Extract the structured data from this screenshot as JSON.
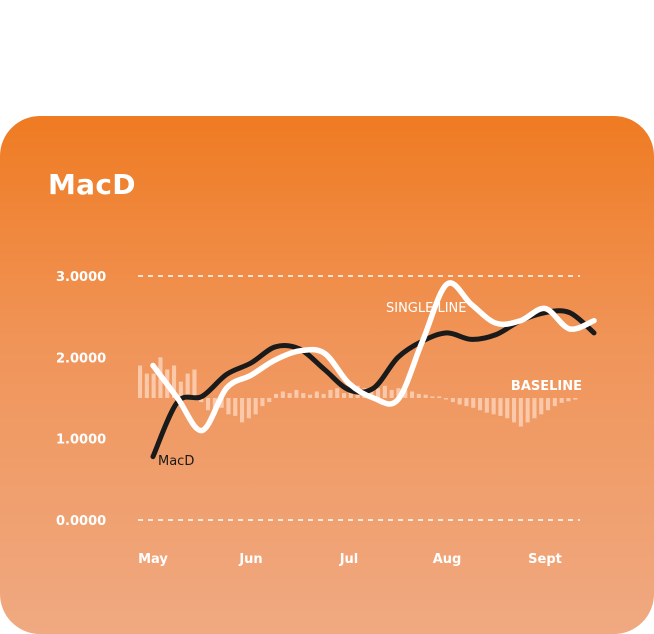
{
  "card": {
    "title": "MacD"
  },
  "chart_data": {
    "type": "line",
    "title": "MacD",
    "xlabel": "",
    "ylabel": "",
    "x_tick_labels": [
      "May",
      "Jun",
      "Jul",
      "Aug",
      "Sept"
    ],
    "y_tick_labels": [
      "0.0000",
      "1.0000",
      "2.0000",
      "3.0000"
    ],
    "ylim": [
      0,
      3.0
    ],
    "grid": "dashed horizontal lines at 0 and 3",
    "x": [
      0,
      0.25,
      0.5,
      0.75,
      1,
      1.25,
      1.5,
      1.75,
      2,
      2.25,
      2.5,
      2.75,
      3,
      3.25,
      3.5,
      3.75,
      4,
      4.25,
      4.5
    ],
    "series": [
      {
        "name": "MacD",
        "color": "#1a1a1a",
        "values": [
          0.78,
          1.45,
          1.52,
          1.79,
          1.93,
          2.13,
          2.1,
          1.85,
          1.6,
          1.62,
          2.0,
          2.2,
          2.3,
          2.22,
          2.28,
          2.45,
          2.55,
          2.55,
          2.3
        ]
      },
      {
        "name": "SINGLE LINE",
        "color": "#ffffff",
        "values": [
          1.9,
          1.5,
          1.1,
          1.62,
          1.78,
          1.97,
          2.08,
          2.05,
          1.68,
          1.5,
          1.48,
          2.2,
          2.9,
          2.65,
          2.42,
          2.45,
          2.6,
          2.35,
          2.45
        ]
      }
    ],
    "baseline": {
      "label": "BASELINE",
      "value": 1.5,
      "histogram": [
        0.4,
        0.3,
        0.3,
        0.5,
        0.35,
        0.4,
        0.2,
        0.3,
        0.35,
        -0.05,
        -0.15,
        -0.2,
        -0.12,
        -0.2,
        -0.22,
        -0.3,
        -0.25,
        -0.2,
        -0.1,
        -0.05,
        0.05,
        0.08,
        0.06,
        0.1,
        0.06,
        0.04,
        0.08,
        0.05,
        0.1,
        0.12,
        0.06,
        0.1,
        0.15,
        0.12,
        0.1,
        0.12,
        0.15,
        0.1,
        0.12,
        0.1,
        0.08,
        0.05,
        0.04,
        0.02,
        0.02,
        0.0,
        -0.05,
        -0.08,
        -0.1,
        -0.12,
        -0.15,
        -0.18,
        -0.2,
        -0.22,
        -0.25,
        -0.3,
        -0.35,
        -0.3,
        -0.25,
        -0.2,
        -0.15,
        -0.1,
        -0.06,
        -0.04,
        -0.02
      ]
    },
    "annotations": [
      {
        "text": "SINGLE LINE",
        "series": "SINGLE LINE"
      },
      {
        "text": "MacD",
        "series": "MacD"
      },
      {
        "text": "BASELINE"
      }
    ]
  },
  "colors": {
    "accent": "#ef7b22",
    "gradient_bottom": "#f0a981",
    "macd_line": "#1a1a1a",
    "signal_line": "#ffffff",
    "histogram": "#ffd8c2"
  }
}
